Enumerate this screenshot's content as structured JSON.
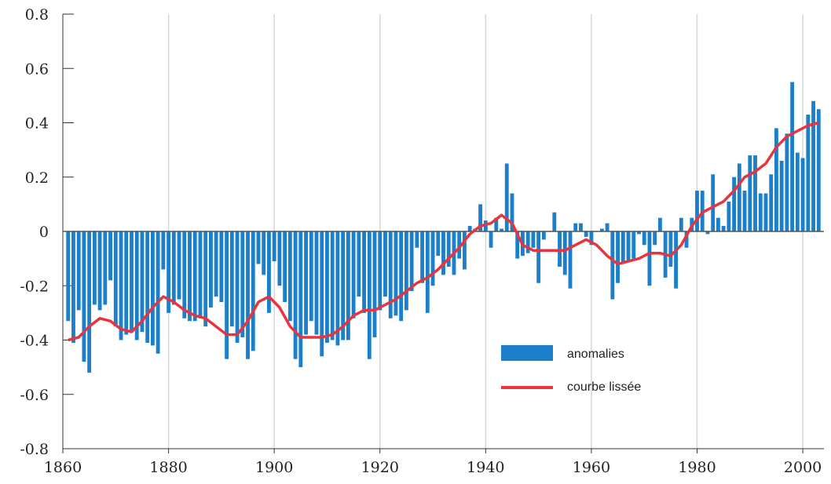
{
  "chart_data": {
    "type": "bar",
    "xlim": [
      1860,
      2004
    ],
    "xticks": [
      1860,
      1880,
      1900,
      1920,
      1940,
      1960,
      1980,
      2000
    ],
    "ylim": [
      -0.8,
      0.8
    ],
    "yticks": [
      -0.8,
      -0.6,
      -0.4,
      -0.2,
      0,
      0.2,
      0.4,
      0.6,
      0.8
    ],
    "grid": true,
    "legend": "lower right",
    "series": [
      {
        "name": "anomalies",
        "type": "bar",
        "color": "#1b7fc9",
        "x": [
          1861,
          1862,
          1863,
          1864,
          1865,
          1866,
          1867,
          1868,
          1869,
          1870,
          1871,
          1872,
          1873,
          1874,
          1875,
          1876,
          1877,
          1878,
          1879,
          1880,
          1881,
          1882,
          1883,
          1884,
          1885,
          1886,
          1887,
          1888,
          1889,
          1890,
          1891,
          1892,
          1893,
          1894,
          1895,
          1896,
          1897,
          1898,
          1899,
          1900,
          1901,
          1902,
          1903,
          1904,
          1905,
          1906,
          1907,
          1908,
          1909,
          1910,
          1911,
          1912,
          1913,
          1914,
          1915,
          1916,
          1917,
          1918,
          1919,
          1920,
          1921,
          1922,
          1923,
          1924,
          1925,
          1926,
          1927,
          1928,
          1929,
          1930,
          1931,
          1932,
          1933,
          1934,
          1935,
          1936,
          1937,
          1938,
          1939,
          1940,
          1941,
          1942,
          1943,
          1944,
          1945,
          1946,
          1947,
          1948,
          1949,
          1950,
          1951,
          1952,
          1953,
          1954,
          1955,
          1956,
          1957,
          1958,
          1959,
          1960,
          1961,
          1962,
          1963,
          1964,
          1965,
          1966,
          1967,
          1968,
          1969,
          1970,
          1971,
          1972,
          1973,
          1974,
          1975,
          1976,
          1977,
          1978,
          1979,
          1980,
          1981,
          1982,
          1983,
          1984,
          1985,
          1986,
          1987,
          1988,
          1989,
          1990,
          1991,
          1992,
          1993,
          1994,
          1995,
          1996,
          1997,
          1998,
          1999,
          2000,
          2001,
          2002,
          2003
        ],
        "values": [
          -0.33,
          -0.41,
          -0.29,
          -0.48,
          -0.52,
          -0.27,
          -0.29,
          -0.27,
          -0.18,
          -0.35,
          -0.4,
          -0.38,
          -0.37,
          -0.4,
          -0.37,
          -0.41,
          -0.42,
          -0.45,
          -0.14,
          -0.3,
          -0.27,
          -0.25,
          -0.32,
          -0.33,
          -0.33,
          -0.32,
          -0.35,
          -0.28,
          -0.24,
          -0.26,
          -0.47,
          -0.35,
          -0.41,
          -0.39,
          -0.47,
          -0.44,
          -0.12,
          -0.16,
          -0.3,
          -0.11,
          -0.2,
          -0.26,
          -0.33,
          -0.47,
          -0.5,
          -0.38,
          -0.33,
          -0.38,
          -0.46,
          -0.41,
          -0.4,
          -0.42,
          -0.4,
          -0.4,
          -0.32,
          -0.24,
          -0.3,
          -0.47,
          -0.39,
          -0.29,
          -0.24,
          -0.32,
          -0.31,
          -0.33,
          -0.29,
          -0.22,
          -0.06,
          -0.19,
          -0.3,
          -0.2,
          -0.09,
          -0.16,
          -0.13,
          -0.16,
          -0.1,
          -0.14,
          0.02,
          0.01,
          0.1,
          0.04,
          -0.06,
          0.05,
          0.01,
          0.25,
          0.14,
          -0.1,
          -0.09,
          -0.08,
          -0.06,
          -0.19,
          -0.03,
          0.0,
          0.07,
          -0.13,
          -0.16,
          -0.21,
          0.03,
          0.03,
          -0.02,
          -0.05,
          0.0,
          0.01,
          0.03,
          -0.25,
          -0.19,
          -0.12,
          -0.11,
          -0.1,
          -0.01,
          -0.05,
          -0.2,
          -0.05,
          0.05,
          -0.17,
          -0.13,
          -0.21,
          0.05,
          -0.06,
          0.05,
          0.15,
          0.15,
          -0.01,
          0.21,
          0.05,
          0.02,
          0.11,
          0.2,
          0.25,
          0.15,
          0.28,
          0.28,
          0.14,
          0.14,
          0.21,
          0.38,
          0.26,
          0.36,
          0.55,
          0.29,
          0.27,
          0.43,
          0.48,
          0.45
        ]
      },
      {
        "name": "courbe lissée",
        "type": "line",
        "color": "#e8343c",
        "x": [
          1861,
          1863,
          1865,
          1867,
          1869,
          1871,
          1873,
          1875,
          1877,
          1879,
          1881,
          1883,
          1885,
          1887,
          1889,
          1891,
          1893,
          1895,
          1897,
          1899,
          1901,
          1903,
          1905,
          1907,
          1909,
          1911,
          1913,
          1915,
          1917,
          1919,
          1921,
          1923,
          1925,
          1927,
          1929,
          1931,
          1933,
          1935,
          1937,
          1939,
          1941,
          1943,
          1945,
          1947,
          1949,
          1951,
          1953,
          1955,
          1957,
          1959,
          1961,
          1963,
          1965,
          1967,
          1969,
          1971,
          1973,
          1975,
          1977,
          1979,
          1981,
          1983,
          1985,
          1987,
          1989,
          1991,
          1993,
          1995,
          1997,
          1999,
          2001,
          2003
        ],
        "values": [
          -0.4,
          -0.39,
          -0.35,
          -0.32,
          -0.33,
          -0.36,
          -0.37,
          -0.33,
          -0.28,
          -0.24,
          -0.26,
          -0.29,
          -0.31,
          -0.32,
          -0.35,
          -0.38,
          -0.38,
          -0.33,
          -0.26,
          -0.24,
          -0.28,
          -0.35,
          -0.39,
          -0.39,
          -0.39,
          -0.38,
          -0.35,
          -0.31,
          -0.29,
          -0.29,
          -0.27,
          -0.25,
          -0.22,
          -0.19,
          -0.17,
          -0.14,
          -0.1,
          -0.06,
          -0.01,
          0.02,
          0.03,
          0.06,
          0.03,
          -0.05,
          -0.07,
          -0.07,
          -0.07,
          -0.07,
          -0.05,
          -0.03,
          -0.05,
          -0.09,
          -0.12,
          -0.11,
          -0.1,
          -0.08,
          -0.08,
          -0.09,
          -0.05,
          0.02,
          0.07,
          0.09,
          0.11,
          0.15,
          0.2,
          0.22,
          0.25,
          0.31,
          0.35,
          0.37,
          0.39,
          0.4
        ]
      }
    ]
  }
}
